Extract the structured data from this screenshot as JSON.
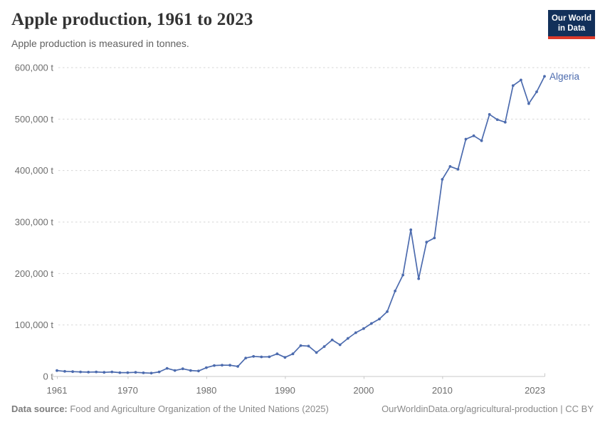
{
  "header": {
    "title": "Apple production, 1961 to 2023",
    "subtitle": "Apple production is measured in tonnes.",
    "logo": {
      "line1": "Our World",
      "line2": "in Data"
    }
  },
  "footer": {
    "source_label": "Data source:",
    "source_text": " Food and Agriculture Organization of the United Nations (2025)",
    "credit": "OurWorldinData.org/agricultural-production | CC BY"
  },
  "colors": {
    "line": "#4c6bae",
    "grid": "#d6d6d6",
    "axis": "#c8c8c8",
    "tick_text": "#6e6e6e",
    "logo_bg": "#12305a",
    "logo_red": "#dc3a2a"
  },
  "chart_data": {
    "type": "line",
    "title": "Apple production, 1961 to 2023",
    "xlabel": "",
    "ylabel": "",
    "unit": "t",
    "xlim": [
      1961,
      2023
    ],
    "ylim": [
      0,
      600000
    ],
    "grid": true,
    "legend_position": "end-of-line-label",
    "x_ticks": [
      1961,
      1970,
      1980,
      1990,
      2000,
      2010,
      2023
    ],
    "x_tick_labels": [
      "1961",
      "1970",
      "1980",
      "1990",
      "2000",
      "2010",
      "2023"
    ],
    "y_ticks": [
      0,
      100000,
      200000,
      300000,
      400000,
      500000,
      600000
    ],
    "y_tick_labels": [
      "0 t",
      "100,000 t",
      "200,000 t",
      "300,000 t",
      "400,000 t",
      "500,000 t",
      "600,000 t"
    ],
    "x": [
      1961,
      1962,
      1963,
      1964,
      1965,
      1966,
      1967,
      1968,
      1969,
      1970,
      1971,
      1972,
      1973,
      1974,
      1975,
      1976,
      1977,
      1978,
      1979,
      1980,
      1981,
      1982,
      1983,
      1984,
      1985,
      1986,
      1987,
      1988,
      1989,
      1990,
      1991,
      1992,
      1993,
      1994,
      1995,
      1996,
      1997,
      1998,
      1999,
      2000,
      2001,
      2002,
      2003,
      2004,
      2005,
      2006,
      2007,
      2008,
      2009,
      2010,
      2011,
      2012,
      2013,
      2014,
      2015,
      2016,
      2017,
      2018,
      2019,
      2020,
      2021,
      2022,
      2023
    ],
    "series": [
      {
        "name": "Algeria",
        "values": [
          11500,
          10000,
          9400,
          8900,
          8400,
          8800,
          8000,
          8800,
          7400,
          7400,
          8000,
          7000,
          6500,
          8800,
          15700,
          11600,
          14900,
          11600,
          10700,
          17100,
          21300,
          22000,
          21900,
          19500,
          35800,
          39000,
          38000,
          38200,
          44000,
          37000,
          44000,
          60000,
          59000,
          46500,
          58000,
          71000,
          61500,
          74000,
          85000,
          93000,
          103000,
          111500,
          126000,
          166000,
          197000,
          285000,
          190000,
          261000,
          269000,
          383000,
          408000,
          402500,
          461000,
          467500,
          458000,
          509000,
          499000,
          494000,
          565000,
          576000,
          530000,
          553000,
          583000
        ]
      }
    ]
  }
}
